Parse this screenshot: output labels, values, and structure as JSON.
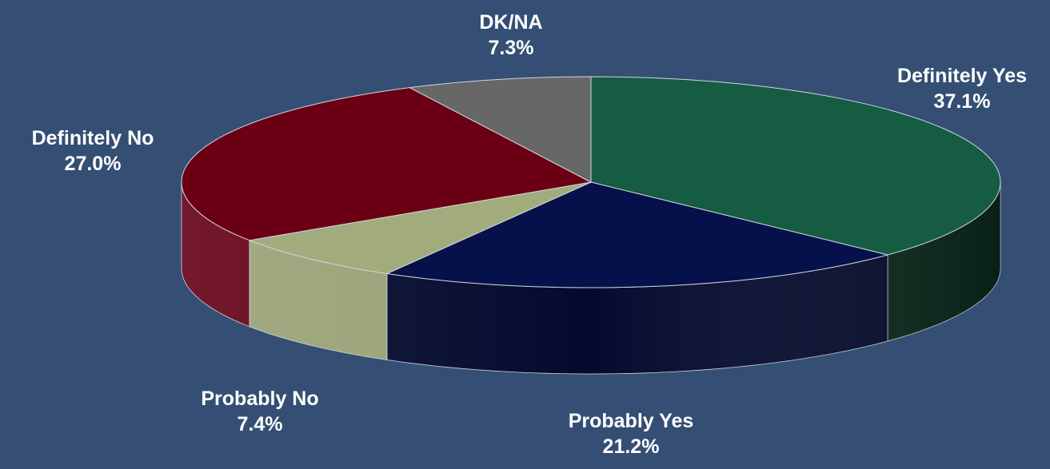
{
  "colors": {
    "background": "#344f73"
  },
  "chart_data": {
    "type": "pie",
    "title": "",
    "three_d": true,
    "slices": [
      {
        "label": "Definitely Yes",
        "value": 37.1,
        "value_label": "37.1%",
        "color": "#155c42",
        "side_color": "#0a2a1c"
      },
      {
        "label": "Probably Yes",
        "value": 21.2,
        "value_label": "21.2%",
        "color": "#06104a",
        "side_color": "#040a2e"
      },
      {
        "label": "Probably No",
        "value": 7.4,
        "value_label": "7.4%",
        "color": "#a2ab7b",
        "side_color": "#98a175"
      },
      {
        "label": "Definitely No",
        "value": 27.0,
        "value_label": "27.0%",
        "color": "#6b0015",
        "side_color": "#640014"
      },
      {
        "label": "DK/NA",
        "value": 7.3,
        "value_label": "7.3%",
        "color": "#676767",
        "side_color": "#4a4a4a"
      }
    ]
  }
}
